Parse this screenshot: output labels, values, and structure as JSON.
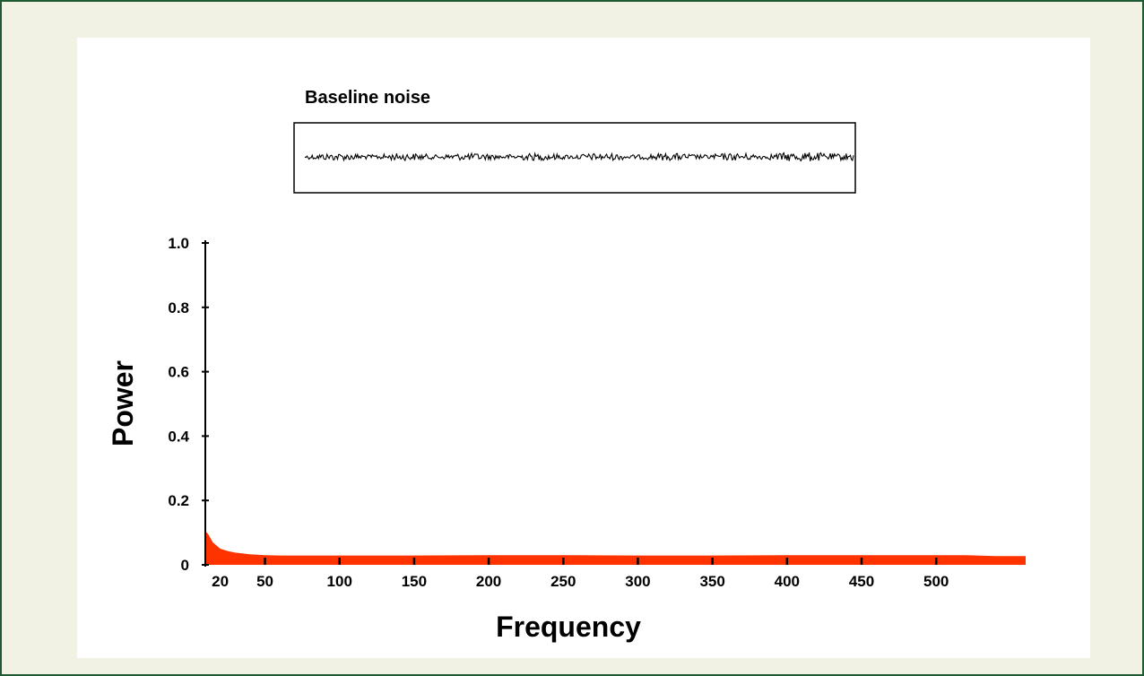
{
  "colors": {
    "frame_border": "#1f5a34",
    "frame_background": "#f1f2e3",
    "panel_background": "#ffffff",
    "fill_series": "#ff3300",
    "trace": "#000000"
  },
  "inset": {
    "title": "Baseline noise",
    "trace_type": "random noise signal, small amplitude, centered"
  },
  "chart_data": {
    "type": "area",
    "title": "",
    "xlabel": "Frequency",
    "ylabel": "Power",
    "ylim": [
      0,
      1.0
    ],
    "y_ticks": [
      "0",
      "0.2",
      "0.4",
      "0.6",
      "0.8",
      "1.0"
    ],
    "x_ticks": [
      "20",
      "50",
      "100",
      "150",
      "200",
      "250",
      "300",
      "350",
      "400",
      "450",
      "500"
    ],
    "xlim": [
      10,
      560
    ],
    "grid": false,
    "legend": "none",
    "series": [
      {
        "x": [
          10,
          12,
          15,
          20,
          25,
          30,
          40,
          50,
          60,
          100,
          150,
          200,
          250,
          300,
          350,
          400,
          450,
          500,
          520,
          540,
          560
        ],
        "values": [
          0.105,
          0.095,
          0.07,
          0.05,
          0.043,
          0.038,
          0.033,
          0.03,
          0.029,
          0.029,
          0.029,
          0.03,
          0.03,
          0.029,
          0.029,
          0.03,
          0.03,
          0.03,
          0.03,
          0.027,
          0.027
        ]
      }
    ]
  }
}
